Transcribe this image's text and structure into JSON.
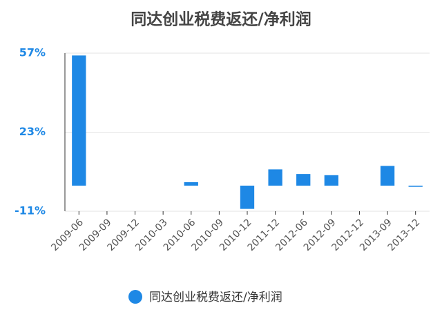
{
  "chart_data": {
    "type": "bar",
    "title": "同达创业税费返还/净利润",
    "categories": [
      "2009-06",
      "2009-09",
      "2009-12",
      "2010-03",
      "2010-06",
      "2010-09",
      "2010-12",
      "2011-12",
      "2012-06",
      "2012-09",
      "2012-12",
      "2013-09",
      "2013-12"
    ],
    "series": [
      {
        "name": "同达创业税费返还/净利润",
        "color": "#1e88e5",
        "values": [
          56,
          0,
          0,
          0,
          1.5,
          0,
          -10,
          7,
          5,
          4.5,
          0,
          8.5,
          -0.5
        ]
      }
    ],
    "ylim": [
      -11,
      57
    ],
    "yticks": [
      {
        "value": -11,
        "label": "-11%"
      },
      {
        "value": 23,
        "label": "23%"
      },
      {
        "value": 57,
        "label": "57%"
      }
    ],
    "grid": true
  }
}
